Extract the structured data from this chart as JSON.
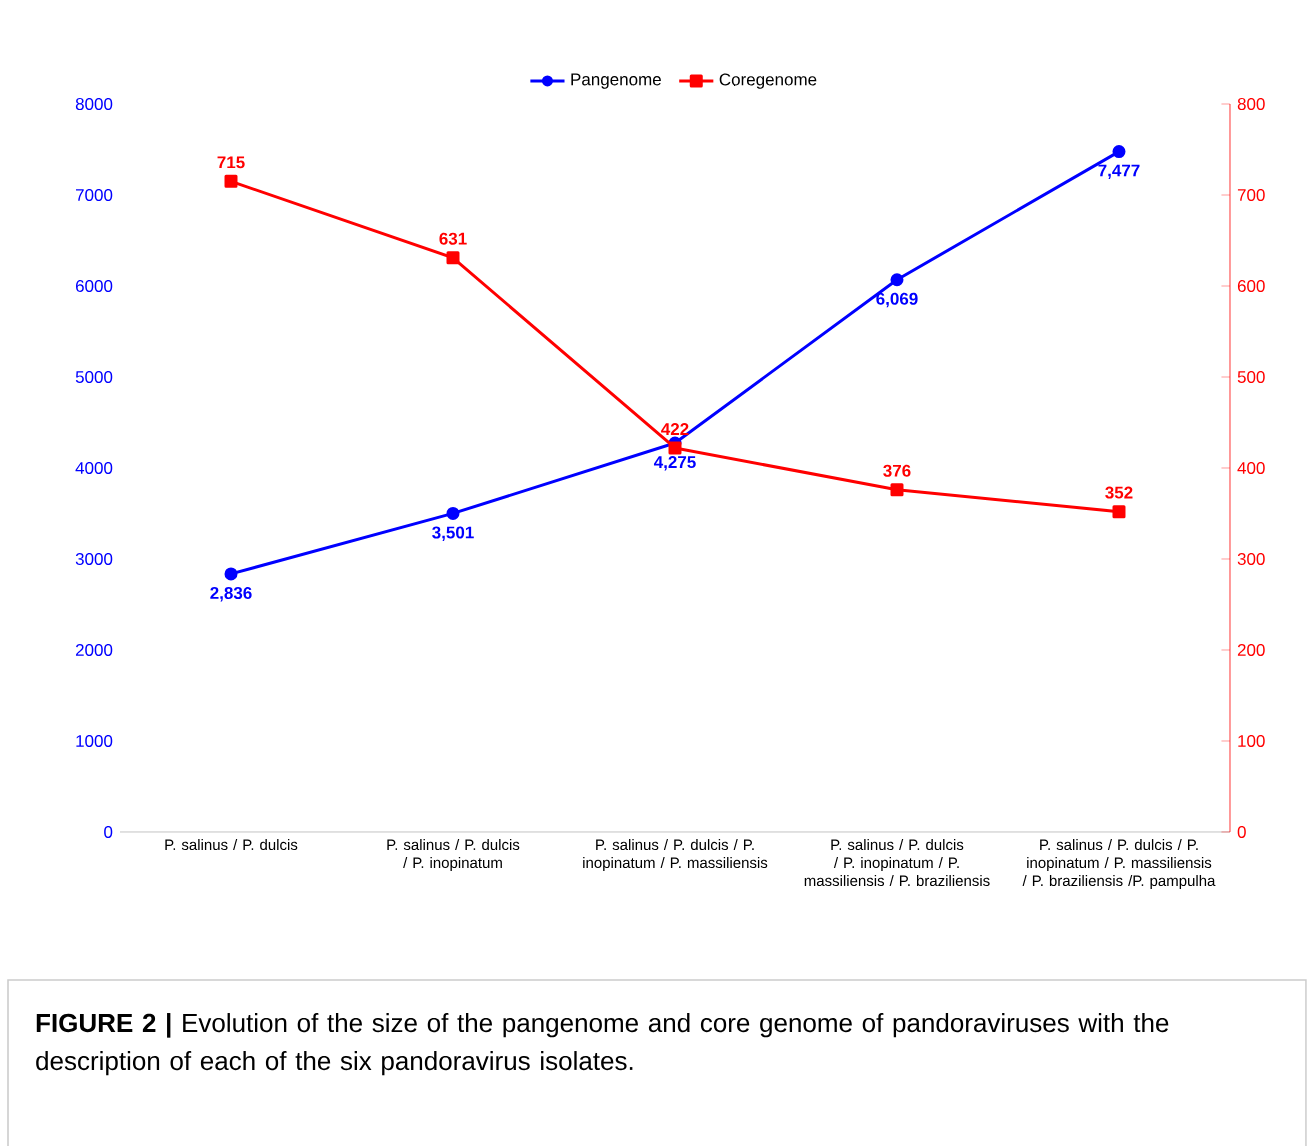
{
  "chart_data": {
    "type": "line",
    "categories": [
      "P. salinus / P. dulcis",
      "P. salinus / P. dulcis / P. inopinatum",
      "P. salinus / P. dulcis / P. inopinatum / P. massiliensis",
      "P. salinus / P. dulcis / P. inopinatum / P. massiliensis / P. braziliensis",
      "P. salinus / P. dulcis / P. inopinatum / P. massiliensis / P. braziliensis /P. pampulha"
    ],
    "series": [
      {
        "name": "Pangenome",
        "color": "#0000ff",
        "marker": "circle",
        "values": [
          2836,
          3501,
          4275,
          6069,
          7477
        ],
        "value_labels": [
          "2,836",
          "3,501",
          "4,275",
          "6,069",
          "7,477"
        ]
      },
      {
        "name": "Coregenome",
        "color": "#ff0000",
        "marker": "square",
        "axis": "y2",
        "values": [
          715,
          631,
          422,
          376,
          352
        ],
        "value_labels": [
          "715",
          "631",
          "422",
          "376",
          "352"
        ]
      }
    ],
    "ylim": [
      0,
      8000
    ],
    "yticks": [
      0,
      1000,
      2000,
      3000,
      4000,
      5000,
      6000,
      7000,
      8000
    ],
    "y2lim": [
      0,
      800
    ],
    "y2ticks": [
      0,
      100,
      200,
      300,
      400,
      500,
      600,
      700,
      800
    ],
    "legend": "top",
    "grid": false,
    "annotations": [
      "**FIGURE 2 |** Evolution of the size of the pangenome and core genome of pandoraviruses with the description of each of the six pandoravirus isolates."
    ]
  }
}
